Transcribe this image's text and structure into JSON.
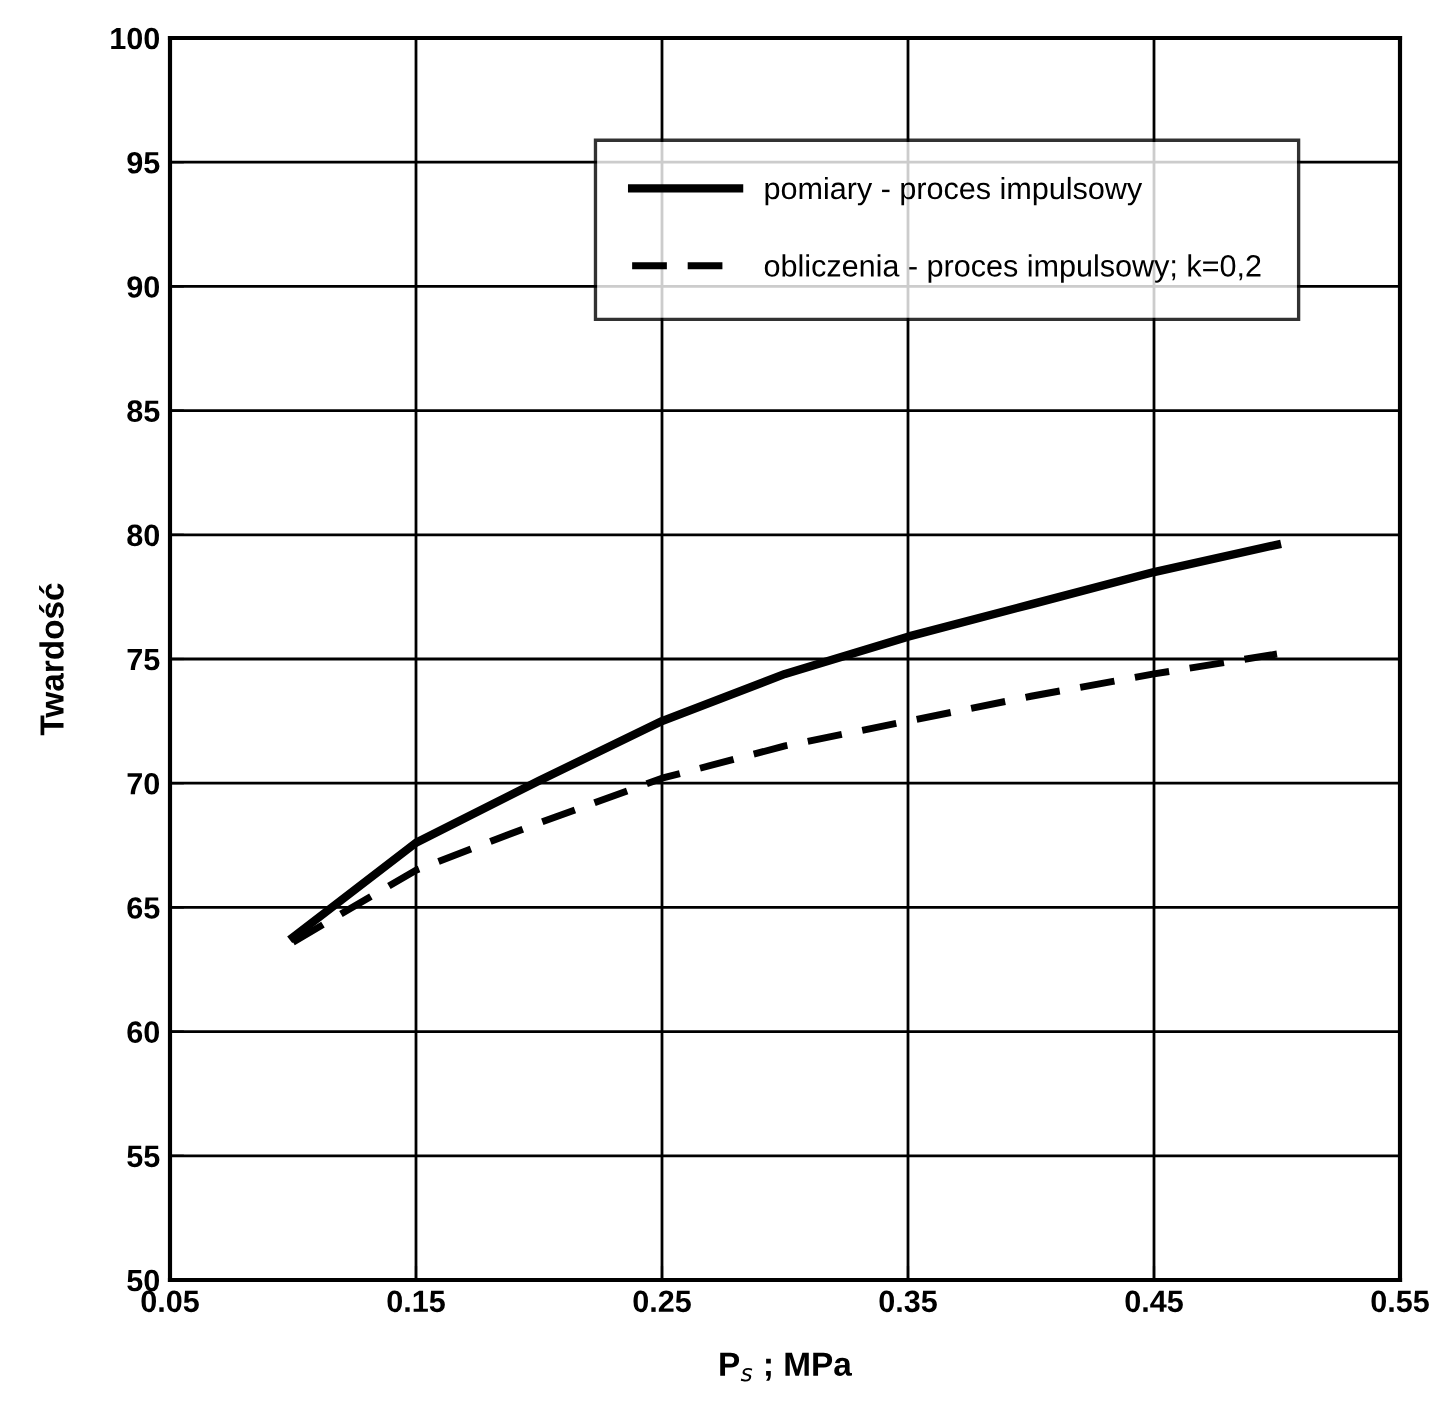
{
  "chart_data": {
    "type": "line",
    "xlabel": "P$_{s}$ ; MPa",
    "ylabel": "Twardość",
    "x": [
      0.1,
      0.15,
      0.2,
      0.25,
      0.3,
      0.35,
      0.4,
      0.45,
      0.5
    ],
    "series": [
      {
        "name": "pomiary - proces impulsowy",
        "color": "#000000",
        "line_style": "solid",
        "values": [
          63.8,
          67.6,
          70.1,
          72.5,
          74.4,
          75.9,
          77.2,
          78.5,
          79.6
        ]
      },
      {
        "name": "obliczenia - proces impulsowy; k=0,2",
        "color": "#000000",
        "line_style": "dashed",
        "values": [
          63.6,
          66.5,
          68.4,
          70.2,
          71.5,
          72.5,
          73.5,
          74.4,
          75.2
        ]
      }
    ],
    "xlim": [
      0.05,
      0.55
    ],
    "xticks": [
      {
        "value": 0.05,
        "label": "0.05"
      },
      {
        "value": 0.15,
        "label": "0.15"
      },
      {
        "value": 0.25,
        "label": "0.25"
      },
      {
        "value": 0.35,
        "label": "0.35"
      },
      {
        "value": 0.45,
        "label": "0.45"
      },
      {
        "value": 0.55,
        "label": "0.55"
      }
    ],
    "ylim": [
      50,
      100
    ],
    "yticks": [
      50,
      55,
      60,
      65,
      70,
      75,
      80,
      85,
      90,
      95,
      100
    ],
    "grid": true,
    "legend": "top right",
    "marker": "none"
  }
}
